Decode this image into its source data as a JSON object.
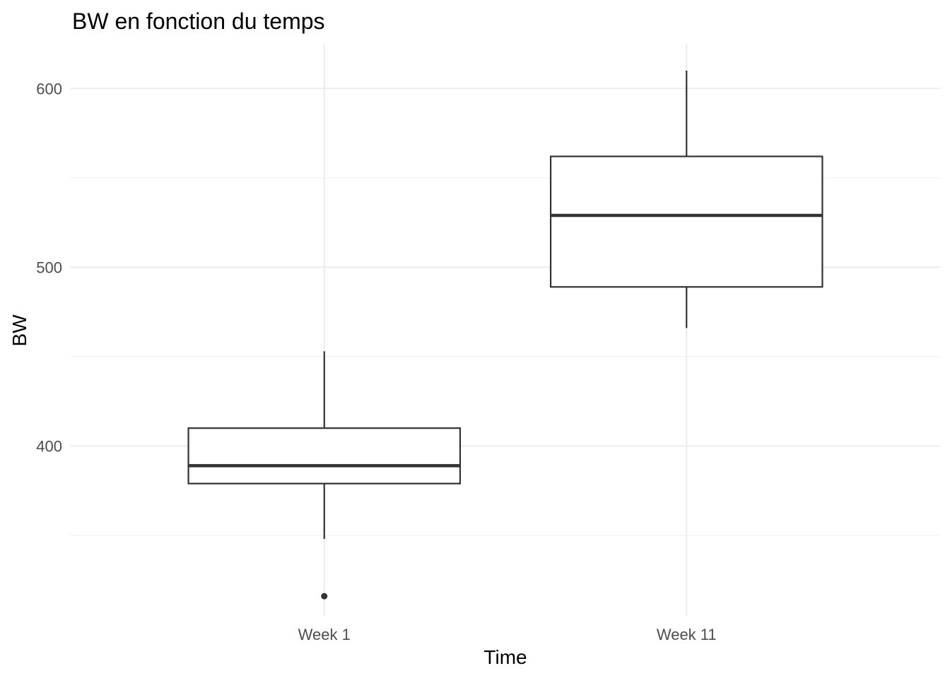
{
  "chart_data": {
    "type": "boxplot",
    "title": "BW en fonction du temps",
    "xlabel": "Time",
    "ylabel": "BW",
    "categories": [
      "Week 1",
      "Week 11"
    ],
    "ylim": [
      305,
      625
    ],
    "yticks": [
      400,
      500,
      600
    ],
    "y_minor_ticks": [
      350,
      450,
      550
    ],
    "grid": true,
    "boxes": [
      {
        "category": "Week 1",
        "whisker_low": 348,
        "q1": 379,
        "median": 389,
        "q3": 410,
        "whisker_high": 453,
        "outliers": [
          316
        ]
      },
      {
        "category": "Week 11",
        "whisker_low": 466,
        "q1": 489,
        "median": 529,
        "q3": 562,
        "whisker_high": 610,
        "outliers": []
      }
    ]
  }
}
